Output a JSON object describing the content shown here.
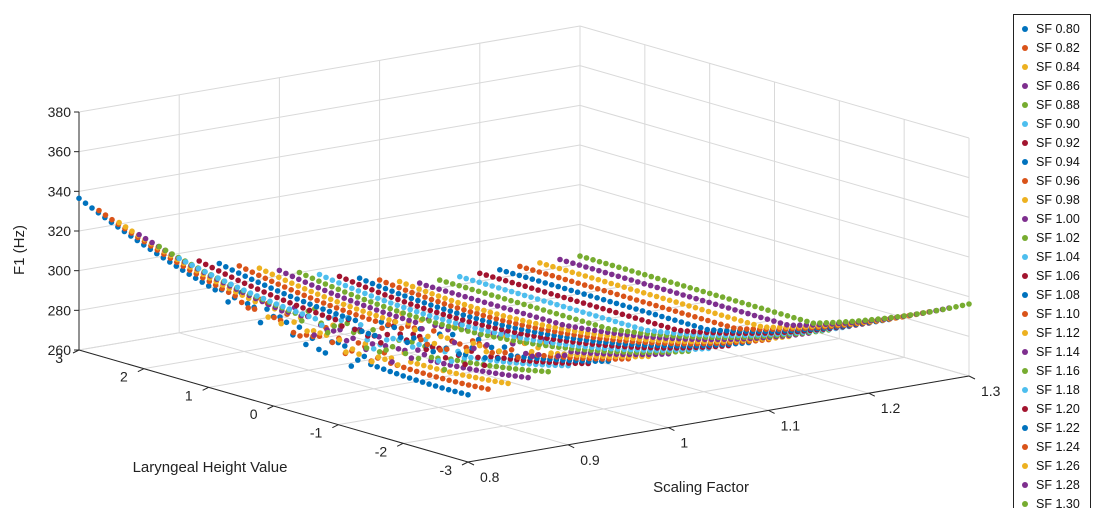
{
  "chart_data": {
    "type": "scatter",
    "zlabel": "F1 (Hz)",
    "xlabel": "Laryngeal Height Value",
    "ylabel": "Scaling Factor",
    "zlim": [
      260,
      380
    ],
    "xlim": [
      -3,
      3
    ],
    "ylim": [
      0.8,
      1.3
    ],
    "z_ticks": [
      "260",
      "280",
      "300",
      "320",
      "340",
      "360",
      "380"
    ],
    "x_ticks": [
      "3",
      "2",
      "1",
      "0",
      "-1",
      "-2",
      "-3"
    ],
    "y_ticks": [
      "0.8",
      "0.9",
      "1",
      "1.1",
      "1.2",
      "1.3"
    ],
    "grid": true,
    "legend_position": "right",
    "series": [
      {
        "name": "SF 0.80",
        "sf": 0.8,
        "color": "#0072BD"
      },
      {
        "name": "SF 0.82",
        "sf": 0.82,
        "color": "#D95319"
      },
      {
        "name": "SF 0.84",
        "sf": 0.84,
        "color": "#EDB120"
      },
      {
        "name": "SF 0.86",
        "sf": 0.86,
        "color": "#7E2F8E"
      },
      {
        "name": "SF 0.88",
        "sf": 0.88,
        "color": "#77AC30"
      },
      {
        "name": "SF 0.90",
        "sf": 0.9,
        "color": "#4DBEEE"
      },
      {
        "name": "SF 0.92",
        "sf": 0.92,
        "color": "#A2142F"
      },
      {
        "name": "SF 0.94",
        "sf": 0.94,
        "color": "#0072BD"
      },
      {
        "name": "SF 0.96",
        "sf": 0.96,
        "color": "#D95319"
      },
      {
        "name": "SF 0.98",
        "sf": 0.98,
        "color": "#EDB120"
      },
      {
        "name": "SF 1.00",
        "sf": 1.0,
        "color": "#7E2F8E"
      },
      {
        "name": "SF 1.02",
        "sf": 1.02,
        "color": "#77AC30"
      },
      {
        "name": "SF 1.04",
        "sf": 1.04,
        "color": "#4DBEEE"
      },
      {
        "name": "SF 1.06",
        "sf": 1.06,
        "color": "#A2142F"
      },
      {
        "name": "SF 1.08",
        "sf": 1.08,
        "color": "#0072BD"
      },
      {
        "name": "SF 1.10",
        "sf": 1.1,
        "color": "#D95319"
      },
      {
        "name": "SF 1.12",
        "sf": 1.12,
        "color": "#EDB120"
      },
      {
        "name": "SF 1.14",
        "sf": 1.14,
        "color": "#7E2F8E"
      },
      {
        "name": "SF 1.16",
        "sf": 1.16,
        "color": "#77AC30"
      },
      {
        "name": "SF 1.18",
        "sf": 1.18,
        "color": "#4DBEEE"
      },
      {
        "name": "SF 1.20",
        "sf": 1.2,
        "color": "#A2142F"
      },
      {
        "name": "SF 1.22",
        "sf": 1.22,
        "color": "#0072BD"
      },
      {
        "name": "SF 1.24",
        "sf": 1.24,
        "color": "#D95319"
      },
      {
        "name": "SF 1.26",
        "sf": 1.26,
        "color": "#EDB120"
      },
      {
        "name": "SF 1.28",
        "sf": 1.28,
        "color": "#7E2F8E"
      },
      {
        "name": "SF 1.30",
        "sf": 1.3,
        "color": "#77AC30"
      }
    ]
  }
}
